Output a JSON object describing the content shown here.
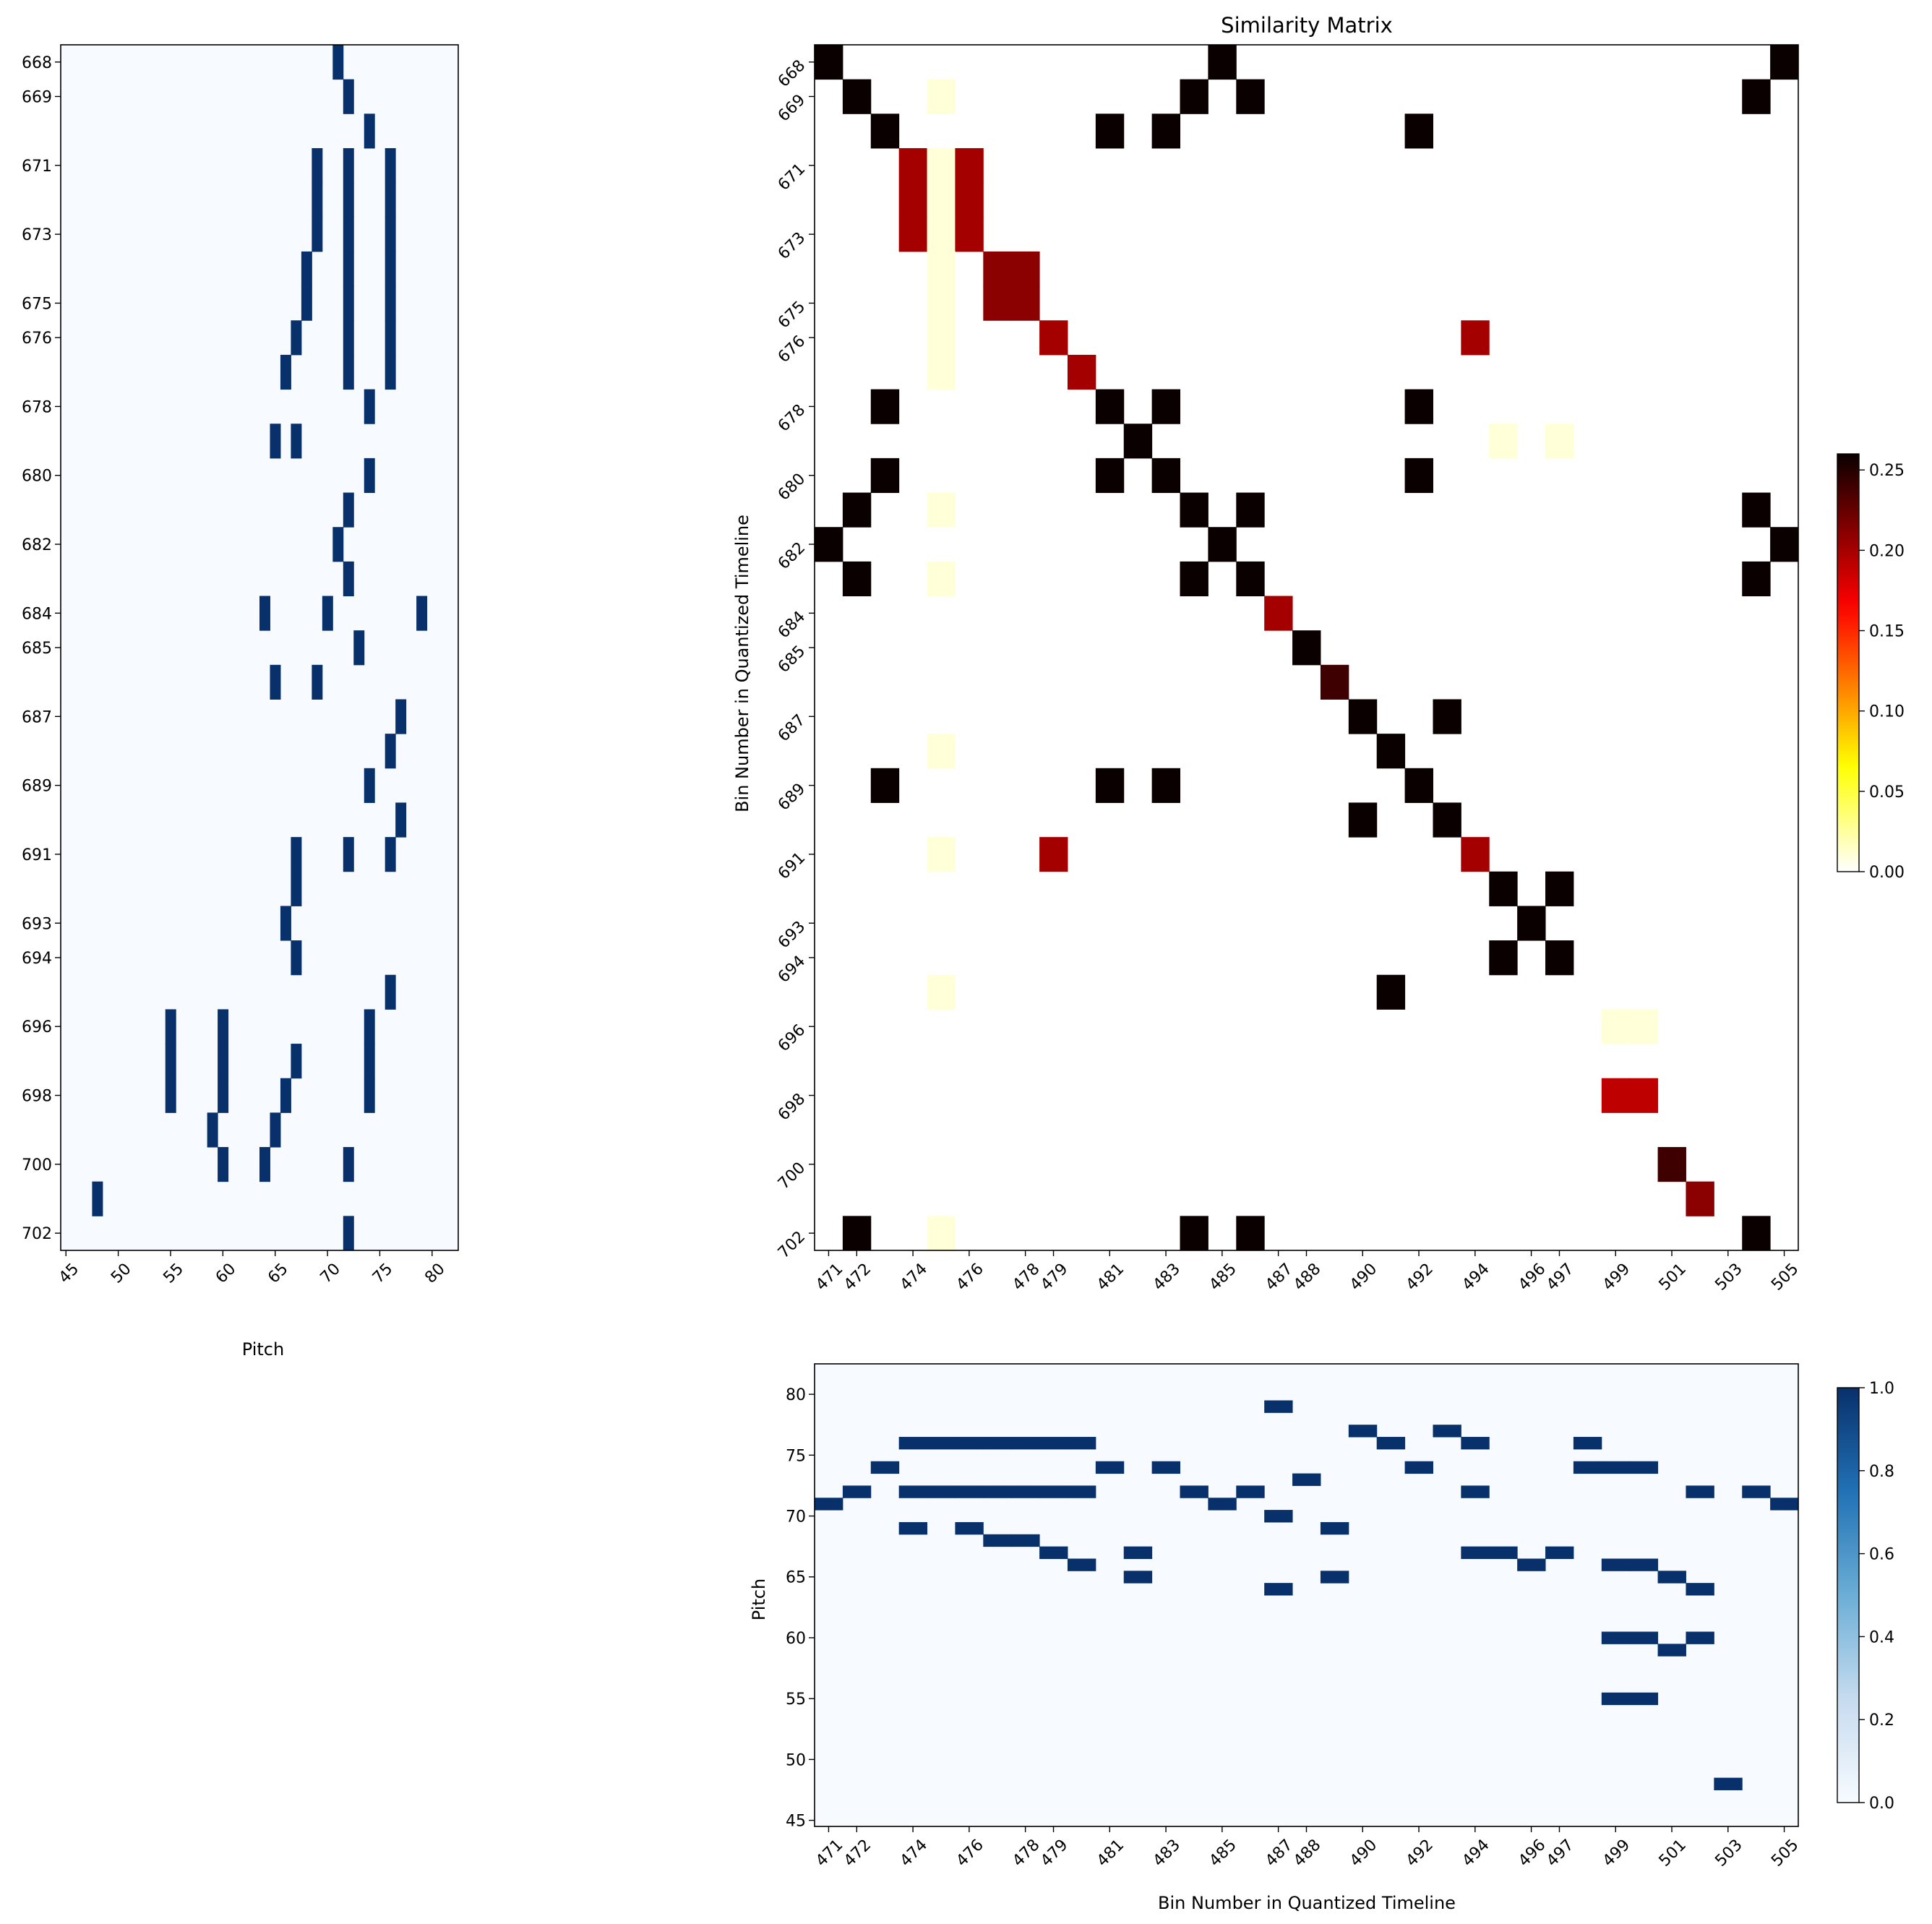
{
  "chart_data": [
    {
      "id": "pitch_left",
      "type": "heatmap",
      "title": "",
      "xlabel": "Pitch",
      "ylabel": "",
      "xlim": [
        44.5,
        82.5
      ],
      "ylim": [
        702.5,
        667.5
      ],
      "xticks": [
        45,
        50,
        55,
        60,
        65,
        70,
        75,
        80
      ],
      "yticks": [
        668,
        669,
        671,
        673,
        675,
        676,
        678,
        680,
        682,
        684,
        685,
        687,
        689,
        691,
        693,
        694,
        696,
        698,
        700,
        702
      ],
      "colormap": "Blues",
      "active_cells": [
        {
          "bin": 668,
          "pitches": [
            71
          ]
        },
        {
          "bin": 669,
          "pitches": [
            72
          ]
        },
        {
          "bin": 670,
          "pitches": [
            74
          ]
        },
        {
          "bin": 671,
          "pitches": [
            69,
            72,
            76
          ]
        },
        {
          "bin": 672,
          "pitches": [
            69,
            72,
            76
          ]
        },
        {
          "bin": 673,
          "pitches": [
            69,
            72,
            76
          ]
        },
        {
          "bin": 674,
          "pitches": [
            68,
            72,
            76
          ]
        },
        {
          "bin": 675,
          "pitches": [
            68,
            72,
            76
          ]
        },
        {
          "bin": 676,
          "pitches": [
            67,
            72,
            76
          ]
        },
        {
          "bin": 677,
          "pitches": [
            66,
            72,
            76
          ]
        },
        {
          "bin": 678,
          "pitches": [
            74
          ]
        },
        {
          "bin": 679,
          "pitches": [
            65,
            67
          ]
        },
        {
          "bin": 680,
          "pitches": [
            74
          ]
        },
        {
          "bin": 681,
          "pitches": [
            72
          ]
        },
        {
          "bin": 682,
          "pitches": [
            71
          ]
        },
        {
          "bin": 683,
          "pitches": [
            72
          ]
        },
        {
          "bin": 684,
          "pitches": [
            64,
            70,
            79
          ]
        },
        {
          "bin": 685,
          "pitches": [
            73
          ]
        },
        {
          "bin": 686,
          "pitches": [
            65,
            69
          ]
        },
        {
          "bin": 687,
          "pitches": [
            77
          ]
        },
        {
          "bin": 688,
          "pitches": [
            76
          ]
        },
        {
          "bin": 689,
          "pitches": [
            74
          ]
        },
        {
          "bin": 690,
          "pitches": [
            77
          ]
        },
        {
          "bin": 691,
          "pitches": [
            67,
            72,
            76
          ]
        },
        {
          "bin": 692,
          "pitches": [
            67
          ]
        },
        {
          "bin": 693,
          "pitches": [
            66
          ]
        },
        {
          "bin": 694,
          "pitches": [
            67
          ]
        },
        {
          "bin": 695,
          "pitches": [
            76
          ]
        },
        {
          "bin": 696,
          "pitches": [
            55,
            60,
            74
          ]
        },
        {
          "bin": 697,
          "pitches": [
            55,
            60,
            67,
            74
          ]
        },
        {
          "bin": 698,
          "pitches": [
            55,
            60,
            66,
            74
          ]
        },
        {
          "bin": 699,
          "pitches": [
            59,
            65
          ]
        },
        {
          "bin": 700,
          "pitches": [
            60,
            64,
            72
          ]
        },
        {
          "bin": 701,
          "pitches": [
            48
          ]
        },
        {
          "bin": 702,
          "pitches": [
            72
          ]
        }
      ]
    },
    {
      "id": "similarity",
      "type": "heatmap",
      "title": "Similarity Matrix",
      "xlabel": "",
      "ylabel": "Bin Number in Quantized Timeline",
      "x_bins": [
        471,
        505
      ],
      "y_bins": [
        668,
        702
      ],
      "xticks": [
        471,
        472,
        474,
        476,
        478,
        479,
        481,
        483,
        485,
        487,
        488,
        490,
        492,
        494,
        496,
        497,
        499,
        501,
        503,
        505
      ],
      "yticks": [
        668,
        669,
        671,
        673,
        675,
        676,
        678,
        680,
        682,
        684,
        685,
        687,
        689,
        691,
        693,
        694,
        696,
        698,
        700,
        702
      ],
      "colormap": "hot_r",
      "vmin": 0.0,
      "vmax": 0.26,
      "colorbar_ticks": [
        "0.00",
        "0.05",
        "0.10",
        "0.15",
        "0.20",
        "0.25"
      ],
      "cells": [
        {
          "row": 668,
          "col": 471,
          "value": 0.26
        },
        {
          "row": 668,
          "col": 485,
          "value": 0.26
        },
        {
          "row": 668,
          "col": 505,
          "value": 0.26
        },
        {
          "row": 669,
          "col": 472,
          "value": 0.26
        },
        {
          "row": 669,
          "col": 475,
          "value": 0.01
        },
        {
          "row": 669,
          "col": 484,
          "value": 0.26
        },
        {
          "row": 669,
          "col": 486,
          "value": 0.26
        },
        {
          "row": 669,
          "col": 504,
          "value": 0.26
        },
        {
          "row": 670,
          "col": 473,
          "value": 0.26
        },
        {
          "row": 670,
          "col": 481,
          "value": 0.26
        },
        {
          "row": 670,
          "col": 483,
          "value": 0.26
        },
        {
          "row": 670,
          "col": 492,
          "value": 0.26
        },
        {
          "row": 671,
          "col": 474,
          "value": 0.2
        },
        {
          "row": 671,
          "col": 475,
          "value": 0.01
        },
        {
          "row": 671,
          "col": 476,
          "value": 0.2
        },
        {
          "row": 672,
          "col": 474,
          "value": 0.2
        },
        {
          "row": 672,
          "col": 475,
          "value": 0.01
        },
        {
          "row": 672,
          "col": 476,
          "value": 0.2
        },
        {
          "row": 673,
          "col": 474,
          "value": 0.2
        },
        {
          "row": 673,
          "col": 475,
          "value": 0.01
        },
        {
          "row": 673,
          "col": 476,
          "value": 0.2
        },
        {
          "row": 674,
          "col": 475,
          "value": 0.01
        },
        {
          "row": 674,
          "col": 477,
          "value": 0.21
        },
        {
          "row": 674,
          "col": 478,
          "value": 0.21
        },
        {
          "row": 675,
          "col": 475,
          "value": 0.01
        },
        {
          "row": 675,
          "col": 477,
          "value": 0.21
        },
        {
          "row": 675,
          "col": 478,
          "value": 0.21
        },
        {
          "row": 676,
          "col": 475,
          "value": 0.01
        },
        {
          "row": 676,
          "col": 479,
          "value": 0.2
        },
        {
          "row": 676,
          "col": 494,
          "value": 0.2
        },
        {
          "row": 677,
          "col": 475,
          "value": 0.01
        },
        {
          "row": 677,
          "col": 480,
          "value": 0.2
        },
        {
          "row": 678,
          "col": 473,
          "value": 0.26
        },
        {
          "row": 678,
          "col": 481,
          "value": 0.26
        },
        {
          "row": 678,
          "col": 483,
          "value": 0.26
        },
        {
          "row": 678,
          "col": 492,
          "value": 0.26
        },
        {
          "row": 679,
          "col": 482,
          "value": 0.26
        },
        {
          "row": 679,
          "col": 495,
          "value": 0.01
        },
        {
          "row": 679,
          "col": 497,
          "value": 0.01
        },
        {
          "row": 680,
          "col": 473,
          "value": 0.26
        },
        {
          "row": 680,
          "col": 481,
          "value": 0.26
        },
        {
          "row": 680,
          "col": 483,
          "value": 0.26
        },
        {
          "row": 680,
          "col": 492,
          "value": 0.26
        },
        {
          "row": 681,
          "col": 472,
          "value": 0.26
        },
        {
          "row": 681,
          "col": 475,
          "value": 0.01
        },
        {
          "row": 681,
          "col": 484,
          "value": 0.26
        },
        {
          "row": 681,
          "col": 486,
          "value": 0.26
        },
        {
          "row": 681,
          "col": 504,
          "value": 0.26
        },
        {
          "row": 682,
          "col": 471,
          "value": 0.26
        },
        {
          "row": 682,
          "col": 485,
          "value": 0.26
        },
        {
          "row": 682,
          "col": 505,
          "value": 0.26
        },
        {
          "row": 683,
          "col": 472,
          "value": 0.26
        },
        {
          "row": 683,
          "col": 475,
          "value": 0.01
        },
        {
          "row": 683,
          "col": 484,
          "value": 0.26
        },
        {
          "row": 683,
          "col": 486,
          "value": 0.26
        },
        {
          "row": 683,
          "col": 504,
          "value": 0.26
        },
        {
          "row": 684,
          "col": 487,
          "value": 0.2
        },
        {
          "row": 685,
          "col": 488,
          "value": 0.26
        },
        {
          "row": 686,
          "col": 489,
          "value": 0.24
        },
        {
          "row": 687,
          "col": 490,
          "value": 0.26
        },
        {
          "row": 687,
          "col": 493,
          "value": 0.26
        },
        {
          "row": 688,
          "col": 475,
          "value": 0.01
        },
        {
          "row": 688,
          "col": 491,
          "value": 0.26
        },
        {
          "row": 689,
          "col": 473,
          "value": 0.26
        },
        {
          "row": 689,
          "col": 481,
          "value": 0.26
        },
        {
          "row": 689,
          "col": 483,
          "value": 0.26
        },
        {
          "row": 689,
          "col": 492,
          "value": 0.26
        },
        {
          "row": 690,
          "col": 490,
          "value": 0.26
        },
        {
          "row": 690,
          "col": 493,
          "value": 0.26
        },
        {
          "row": 691,
          "col": 475,
          "value": 0.01
        },
        {
          "row": 691,
          "col": 479,
          "value": 0.2
        },
        {
          "row": 691,
          "col": 494,
          "value": 0.2
        },
        {
          "row": 692,
          "col": 495,
          "value": 0.26
        },
        {
          "row": 692,
          "col": 497,
          "value": 0.26
        },
        {
          "row": 693,
          "col": 496,
          "value": 0.26
        },
        {
          "row": 694,
          "col": 495,
          "value": 0.26
        },
        {
          "row": 694,
          "col": 497,
          "value": 0.26
        },
        {
          "row": 695,
          "col": 475,
          "value": 0.01
        },
        {
          "row": 695,
          "col": 491,
          "value": 0.26
        },
        {
          "row": 696,
          "col": 499,
          "value": 0.01
        },
        {
          "row": 696,
          "col": 500,
          "value": 0.01
        },
        {
          "row": 698,
          "col": 499,
          "value": 0.19
        },
        {
          "row": 698,
          "col": 500,
          "value": 0.19
        },
        {
          "row": 700,
          "col": 501,
          "value": 0.24
        },
        {
          "row": 701,
          "col": 502,
          "value": 0.21
        },
        {
          "row": 702,
          "col": 472,
          "value": 0.26
        },
        {
          "row": 702,
          "col": 475,
          "value": 0.01
        },
        {
          "row": 702,
          "col": 484,
          "value": 0.26
        },
        {
          "row": 702,
          "col": 486,
          "value": 0.26
        },
        {
          "row": 702,
          "col": 504,
          "value": 0.26
        }
      ],
      "extra_cells_note_free": true
    },
    {
      "id": "pitch_bottom",
      "type": "heatmap",
      "title": "",
      "xlabel": "Bin Number in Quantized Timeline",
      "ylabel": "Pitch",
      "xlim": [
        470.5,
        505.5
      ],
      "ylim": [
        44.5,
        82.5
      ],
      "xticks": [
        471,
        472,
        474,
        476,
        478,
        479,
        481,
        483,
        485,
        487,
        488,
        490,
        492,
        494,
        496,
        497,
        499,
        501,
        503,
        505
      ],
      "yticks": [
        45,
        50,
        55,
        60,
        65,
        70,
        75,
        80
      ],
      "colormap": "Blues",
      "vmin": 0.0,
      "vmax": 1.0,
      "colorbar_ticks": [
        "0.0",
        "0.2",
        "0.4",
        "0.6",
        "0.8",
        "1.0"
      ],
      "active_cells": [
        {
          "bin": 471,
          "pitches": [
            71
          ]
        },
        {
          "bin": 472,
          "pitches": [
            72
          ]
        },
        {
          "bin": 473,
          "pitches": [
            74
          ]
        },
        {
          "bin": 474,
          "pitches": [
            69,
            72,
            76
          ]
        },
        {
          "bin": 475,
          "pitches": [
            72,
            76
          ]
        },
        {
          "bin": 476,
          "pitches": [
            69,
            72,
            76
          ]
        },
        {
          "bin": 477,
          "pitches": [
            68,
            72,
            76
          ]
        },
        {
          "bin": 478,
          "pitches": [
            68,
            72,
            76
          ]
        },
        {
          "bin": 479,
          "pitches": [
            67,
            72,
            76
          ]
        },
        {
          "bin": 480,
          "pitches": [
            66,
            72,
            76
          ]
        },
        {
          "bin": 481,
          "pitches": [
            74
          ]
        },
        {
          "bin": 482,
          "pitches": [
            65,
            67
          ]
        },
        {
          "bin": 483,
          "pitches": [
            74
          ]
        },
        {
          "bin": 484,
          "pitches": [
            72
          ]
        },
        {
          "bin": 485,
          "pitches": [
            71
          ]
        },
        {
          "bin": 486,
          "pitches": [
            72
          ]
        },
        {
          "bin": 487,
          "pitches": [
            64,
            70,
            79
          ]
        },
        {
          "bin": 488,
          "pitches": [
            73
          ]
        },
        {
          "bin": 489,
          "pitches": [
            65,
            69
          ]
        },
        {
          "bin": 490,
          "pitches": [
            77
          ]
        },
        {
          "bin": 491,
          "pitches": [
            76
          ]
        },
        {
          "bin": 492,
          "pitches": [
            74
          ]
        },
        {
          "bin": 493,
          "pitches": [
            77
          ]
        },
        {
          "bin": 494,
          "pitches": [
            67,
            72,
            76
          ]
        },
        {
          "bin": 495,
          "pitches": [
            67
          ]
        },
        {
          "bin": 496,
          "pitches": [
            66
          ]
        },
        {
          "bin": 497,
          "pitches": [
            67
          ]
        },
        {
          "bin": 498,
          "pitches": [
            74,
            76
          ]
        },
        {
          "bin": 499,
          "pitches": [
            55,
            60,
            66,
            74
          ]
        },
        {
          "bin": 500,
          "pitches": [
            55,
            60,
            66,
            74
          ]
        },
        {
          "bin": 501,
          "pitches": [
            59,
            65
          ]
        },
        {
          "bin": 502,
          "pitches": [
            60,
            64,
            72
          ]
        },
        {
          "bin": 503,
          "pitches": [
            48
          ]
        },
        {
          "bin": 504,
          "pitches": [
            72
          ]
        },
        {
          "bin": 505,
          "pitches": [
            71
          ]
        }
      ]
    }
  ]
}
